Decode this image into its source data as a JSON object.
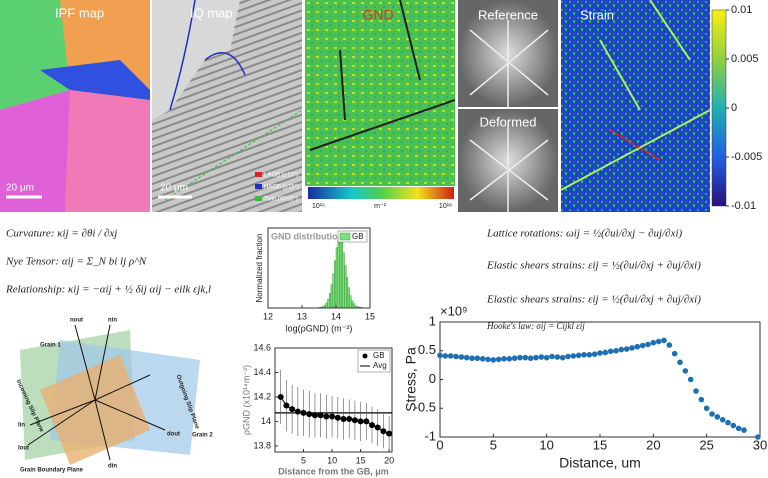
{
  "panels": {
    "ipf": "IPF map",
    "iq": "IQ map",
    "gnd": "GND",
    "reference": "Reference",
    "deformed": "Deformed",
    "strain": "Strain",
    "scale_ipf": "20 μm",
    "scale_iq": "20 μm",
    "iq_legend": [
      "LAGB (≤15°)",
      "HAGB (≥15°)",
      "Twin (60±5°)"
    ],
    "gnd_colorbar": [
      "10¹⁶",
      "m⁻²",
      "10¹⁸"
    ]
  },
  "strain_colorbar": {
    "ticks": [
      0.01,
      0.005,
      0,
      -0.005,
      -0.01
    ],
    "lim": [
      -0.01,
      0.01
    ]
  },
  "equations_left": [
    "Curvature: κij = ∂θi / ∂xj",
    "Nye Tensor: αij = Σ_N bi lj ρ^N",
    "Relationship: κij = −αij + ½ δij αij − eilk εjk,l"
  ],
  "equations_right": [
    "Lattice rotations: ωij = ½(∂ui/∂xj − ∂uj/∂xi)",
    "Elastic shears strains: εij = ½(∂ui/∂xj + ∂uj/∂xi)",
    "Elastic shears strains: εij = ½(∂ui/∂xj + ∂uj/∂xi)",
    "Hooke's law: σij = Cijkl εij"
  ],
  "diagram": {
    "labels": [
      "Grain 1",
      "Grain 2",
      "Grain Boundary Plane",
      "Incoming Slip Plane",
      "Outgoing Slip Plane",
      "nout",
      "nin",
      "lin",
      "lout",
      "dout",
      "din"
    ]
  },
  "chart_data": [
    {
      "type": "histogram",
      "title": "GND distribution",
      "legend": "GB",
      "color": "#7ee07e",
      "ylabel": "Normalized fraction",
      "xlabel": "log(ρGND) (m⁻²)",
      "bins": [
        13.3,
        13.35,
        13.4,
        13.45,
        13.5,
        13.55,
        13.6,
        13.65,
        13.7,
        13.75,
        13.8,
        13.85,
        13.9,
        13.95,
        14,
        14.05,
        14.1,
        14.15,
        14.2,
        14.25,
        14.3,
        14.35,
        14.4,
        14.45,
        14.5,
        14.55,
        14.6,
        14.65,
        14.7,
        14.75,
        14.8
      ],
      "counts": [
        0,
        0,
        0,
        0,
        0.01,
        0.01,
        0.02,
        0.04,
        0.07,
        0.12,
        0.2,
        0.32,
        0.47,
        0.65,
        0.83,
        0.97,
        1,
        0.92,
        0.76,
        0.58,
        0.42,
        0.28,
        0.17,
        0.1,
        0.06,
        0.03,
        0.02,
        0.01,
        0.01,
        0
      ],
      "xlim": [
        12,
        15
      ],
      "xticks": [
        12,
        13,
        14,
        15
      ],
      "ylim": [
        0,
        1.1
      ]
    },
    {
      "type": "line",
      "ylabel": "ρGND (x10¹⁴m⁻²)",
      "xlabel": "Distance from the GB, μm",
      "series_name": "GB",
      "avg_name": "Avg",
      "avg": 14.07,
      "x": [
        1,
        2,
        3,
        4,
        5,
        6,
        7,
        8,
        9,
        10,
        11,
        12,
        13,
        14,
        15,
        16,
        17,
        18,
        19,
        20
      ],
      "values": [
        14.2,
        14.13,
        14.1,
        14.08,
        14.07,
        14.06,
        14.05,
        14.05,
        14.04,
        14.04,
        14.03,
        14.02,
        14.02,
        14.01,
        14,
        14,
        13.97,
        13.95,
        13.92,
        13.9
      ],
      "errors": [
        0.22,
        0.21,
        0.2,
        0.2,
        0.19,
        0.19,
        0.18,
        0.18,
        0.18,
        0.17,
        0.17,
        0.17,
        0.16,
        0.16,
        0.16,
        0.15,
        0.15,
        0.15,
        0.14,
        0.14
      ],
      "xlim": [
        0,
        20.5
      ],
      "xticks": [
        5,
        10,
        15,
        20
      ],
      "ylim": [
        13.75,
        14.6
      ],
      "yticks": [
        13.8,
        14,
        14.2,
        14.4,
        14.6
      ]
    },
    {
      "type": "scatter",
      "ylabel": "Stress, Pa",
      "xlabel": "Distance, um",
      "multiplier": "×10⁹",
      "color": "#1f6fb4",
      "x": [
        0,
        0.5,
        1,
        1.5,
        2,
        2.5,
        3,
        3.5,
        4,
        4.5,
        5,
        5.5,
        6,
        6.5,
        7,
        7.5,
        8,
        8.5,
        9,
        9.5,
        10,
        10.5,
        11,
        11.5,
        12,
        12.5,
        13,
        13.5,
        14,
        14.5,
        15,
        15.5,
        16,
        16.5,
        17,
        17.5,
        18,
        18.5,
        19,
        19.5,
        20,
        20.5,
        21,
        21.5,
        22,
        22.5,
        23,
        23.5,
        24,
        24.5,
        25,
        25.5,
        26,
        26.5,
        27,
        27.5,
        28,
        28.5,
        29.8
      ],
      "values": [
        0.42,
        0.41,
        0.41,
        0.4,
        0.39,
        0.38,
        0.37,
        0.37,
        0.36,
        0.35,
        0.34,
        0.35,
        0.36,
        0.36,
        0.37,
        0.38,
        0.38,
        0.37,
        0.38,
        0.39,
        0.38,
        0.4,
        0.39,
        0.38,
        0.4,
        0.41,
        0.42,
        0.43,
        0.43,
        0.44,
        0.46,
        0.47,
        0.49,
        0.5,
        0.52,
        0.53,
        0.55,
        0.57,
        0.59,
        0.61,
        0.64,
        0.66,
        0.68,
        0.6,
        0.45,
        0.3,
        0.15,
        0,
        -0.2,
        -0.35,
        -0.5,
        -0.6,
        -0.65,
        -0.7,
        -0.75,
        -0.8,
        -0.85,
        -0.88,
        -1
      ],
      "xlim": [
        0,
        30
      ],
      "xticks": [
        0,
        5,
        10,
        15,
        20,
        25,
        30
      ],
      "ylim": [
        -1,
        1
      ],
      "yticks": [
        -1,
        -0.5,
        0,
        0.5,
        1
      ]
    }
  ]
}
